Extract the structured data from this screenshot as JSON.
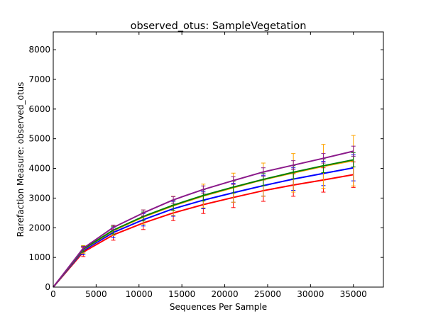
{
  "chart_data": {
    "type": "line",
    "title": "observed_otus: SampleVegetation",
    "xlabel": "Sequences Per Sample",
    "ylabel": "Rarefaction Measure: observed_otus",
    "xlim": [
      0,
      38500
    ],
    "ylim": [
      0,
      8600
    ],
    "xticks": [
      0,
      5000,
      10000,
      15000,
      20000,
      25000,
      30000,
      35000
    ],
    "yticks": [
      0,
      1000,
      2000,
      3000,
      4000,
      5000,
      6000,
      7000,
      8000
    ],
    "grid": false,
    "legend": "none",
    "x": [
      0,
      3500,
      7000,
      10500,
      14000,
      17500,
      21000,
      24500,
      28000,
      31500,
      35000
    ],
    "series": [
      {
        "color": "#ff0000",
        "values": [
          0,
          1180,
          1760,
          2160,
          2500,
          2780,
          3020,
          3250,
          3440,
          3610,
          3790
        ],
        "error": [
          0,
          150,
          180,
          220,
          260,
          300,
          340,
          360,
          380,
          410,
          430
        ]
      },
      {
        "color": "#0000ff",
        "values": [
          0,
          1230,
          1840,
          2270,
          2640,
          2930,
          3180,
          3420,
          3640,
          3830,
          4020
        ],
        "error": [
          0,
          140,
          170,
          210,
          250,
          290,
          320,
          350,
          380,
          410,
          440
        ]
      },
      {
        "color": "#ffa500",
        "values": [
          0,
          1270,
          1900,
          2360,
          2740,
          3070,
          3350,
          3620,
          3850,
          4070,
          4260
        ],
        "error": [
          0,
          130,
          160,
          240,
          320,
          400,
          490,
          560,
          650,
          740,
          850
        ]
      },
      {
        "color": "#008000",
        "values": [
          0,
          1280,
          1920,
          2380,
          2760,
          3090,
          3370,
          3630,
          3870,
          4090,
          4290
        ],
        "error": [
          0,
          100,
          130,
          150,
          170,
          190,
          200,
          210,
          220,
          230,
          240
        ]
      },
      {
        "color": "#8b1a8b",
        "values": [
          0,
          1310,
          2010,
          2500,
          2940,
          3290,
          3590,
          3880,
          4110,
          4340,
          4580
        ],
        "error": [
          0,
          60,
          80,
          100,
          110,
          120,
          130,
          140,
          150,
          160,
          170
        ]
      }
    ]
  }
}
